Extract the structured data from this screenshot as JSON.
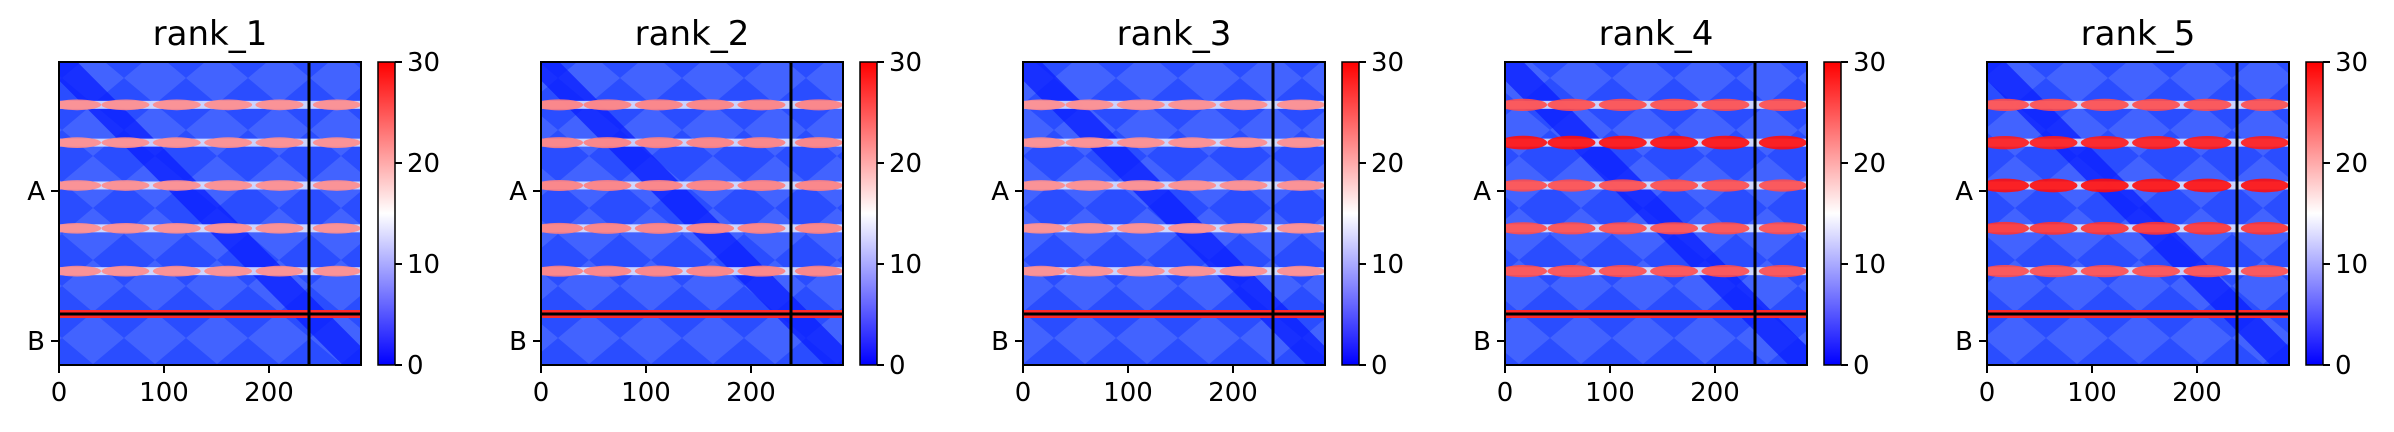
{
  "chart_data": [
    {
      "type": "heatmap",
      "title": "rank_1",
      "x_ticks": [
        "0",
        "100",
        "200"
      ],
      "y_ticks": [
        "A",
        "B"
      ],
      "colorbar": {
        "ticks": [
          "0",
          "10",
          "20",
          "30"
        ],
        "range": [
          0,
          30
        ],
        "colors": [
          "#0000ff",
          "#ffffff",
          "#ff0000"
        ]
      },
      "hot_rows": [
        0.17,
        0.32,
        0.49,
        0.66,
        0.83
      ],
      "hot_strength": [
        0.45,
        0.45,
        0.45,
        0.45,
        0.45
      ]
    },
    {
      "type": "heatmap",
      "title": "rank_2",
      "x_ticks": [
        "0",
        "100",
        "200"
      ],
      "y_ticks": [
        "A",
        "B"
      ],
      "colorbar": {
        "ticks": [
          "0",
          "10",
          "20",
          "30"
        ],
        "range": [
          0,
          30
        ],
        "colors": [
          "#0000ff",
          "#ffffff",
          "#ff0000"
        ]
      },
      "hot_rows": [
        0.17,
        0.32,
        0.49,
        0.66,
        0.83
      ],
      "hot_strength": [
        0.5,
        0.5,
        0.5,
        0.5,
        0.5
      ]
    },
    {
      "type": "heatmap",
      "title": "rank_3",
      "x_ticks": [
        "0",
        "100",
        "200"
      ],
      "y_ticks": [
        "A",
        "B"
      ],
      "colorbar": {
        "ticks": [
          "0",
          "10",
          "20",
          "30"
        ],
        "range": [
          0,
          30
        ],
        "colors": [
          "#0000ff",
          "#ffffff",
          "#ff0000"
        ]
      },
      "hot_rows": [
        0.17,
        0.32,
        0.49,
        0.66,
        0.83
      ],
      "hot_strength": [
        0.45,
        0.45,
        0.45,
        0.45,
        0.45
      ]
    },
    {
      "type": "heatmap",
      "title": "rank_4",
      "x_ticks": [
        "0",
        "100",
        "200"
      ],
      "y_ticks": [
        "A",
        "B"
      ],
      "colorbar": {
        "ticks": [
          "0",
          "10",
          "20",
          "30"
        ],
        "range": [
          0,
          30
        ],
        "colors": [
          "#0000ff",
          "#ffffff",
          "#ff0000"
        ]
      },
      "hot_rows": [
        0.17,
        0.32,
        0.49,
        0.66,
        0.83
      ],
      "hot_strength": [
        0.7,
        0.95,
        0.7,
        0.7,
        0.7
      ]
    },
    {
      "type": "heatmap",
      "title": "rank_5",
      "x_ticks": [
        "0",
        "100",
        "200"
      ],
      "y_ticks": [
        "A",
        "B"
      ],
      "colorbar": {
        "ticks": [
          "0",
          "10",
          "20",
          "30"
        ],
        "range": [
          0,
          30
        ],
        "colors": [
          "#0000ff",
          "#ffffff",
          "#ff0000"
        ]
      },
      "hot_rows": [
        0.17,
        0.32,
        0.49,
        0.66,
        0.83
      ],
      "hot_strength": [
        0.7,
        0.9,
        0.95,
        0.8,
        0.7
      ]
    }
  ]
}
